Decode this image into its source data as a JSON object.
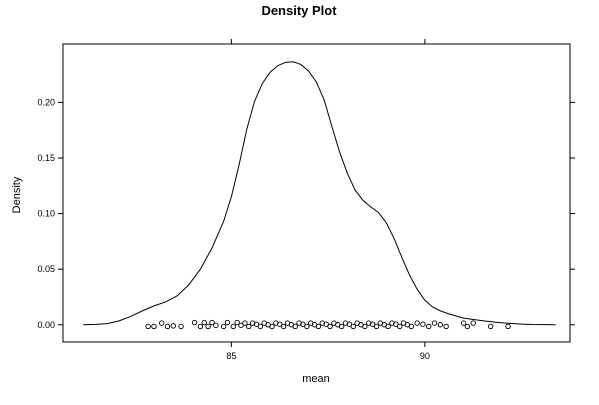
{
  "chart_data": {
    "type": "line",
    "title": "Density Plot",
    "xlabel": "mean",
    "ylabel": "Density",
    "xlim": [
      80.65,
      93.75
    ],
    "ylim": [
      -0.0155,
      0.2525
    ],
    "xticks": [
      85,
      90
    ],
    "yticks": [
      0.0,
      0.05,
      0.1,
      0.15,
      0.2
    ],
    "xtick_labels": [
      "85",
      "90"
    ],
    "ytick_labels": [
      "0.00",
      "0.05",
      "0.10",
      "0.15",
      "0.20"
    ],
    "grid": false,
    "legend": "none",
    "series": [
      {
        "x": [
          81.17,
          81.5,
          81.8,
          82.1,
          82.4,
          82.7,
          83.0,
          83.3,
          83.6,
          83.9,
          84.2,
          84.5,
          84.8,
          85.0,
          85.2,
          85.4,
          85.6,
          85.8,
          86.0,
          86.2,
          86.4,
          86.6,
          86.8,
          87.0,
          87.2,
          87.4,
          87.6,
          87.8,
          88.0,
          88.2,
          88.4,
          88.6,
          88.8,
          89.0,
          89.2,
          89.4,
          89.6,
          89.8,
          90.0,
          90.2,
          90.4,
          90.6,
          90.8,
          91.0,
          91.3,
          91.6,
          91.9,
          92.2,
          92.5,
          92.8,
          93.1,
          93.38
        ],
        "y": [
          0.0,
          0.0003,
          0.001,
          0.0035,
          0.0075,
          0.0125,
          0.017,
          0.0205,
          0.026,
          0.036,
          0.05,
          0.069,
          0.093,
          0.115,
          0.144,
          0.176,
          0.201,
          0.217,
          0.227,
          0.233,
          0.236,
          0.2365,
          0.234,
          0.228,
          0.218,
          0.202,
          0.178,
          0.155,
          0.136,
          0.121,
          0.112,
          0.106,
          0.101,
          0.092,
          0.078,
          0.061,
          0.045,
          0.032,
          0.022,
          0.016,
          0.0125,
          0.01,
          0.008,
          0.006,
          0.0045,
          0.0032,
          0.002,
          0.0012,
          0.0006,
          0.0002,
          0.0001,
          0.0
        ]
      }
    ],
    "rug_points": {
      "y": -0.0015,
      "x": [
        82.85,
        83.0,
        83.2,
        83.35,
        83.5,
        83.7,
        84.05,
        84.2,
        84.3,
        84.4,
        84.5,
        84.6,
        84.8,
        84.9,
        85.05,
        85.15,
        85.25,
        85.35,
        85.45,
        85.55,
        85.65,
        85.75,
        85.85,
        85.95,
        86.05,
        86.15,
        86.25,
        86.35,
        86.45,
        86.55,
        86.65,
        86.75,
        86.85,
        86.95,
        87.05,
        87.15,
        87.25,
        87.35,
        87.45,
        87.55,
        87.65,
        87.75,
        87.85,
        87.95,
        88.05,
        88.15,
        88.25,
        88.35,
        88.45,
        88.55,
        88.65,
        88.75,
        88.85,
        88.95,
        89.05,
        89.15,
        89.25,
        89.35,
        89.45,
        89.55,
        89.65,
        89.8,
        89.95,
        90.1,
        90.25,
        90.4,
        90.55,
        91.0,
        91.1,
        91.25,
        91.7,
        92.15
      ],
      "y_values": [
        -0.0015,
        -0.0015,
        0.0015,
        -0.0015,
        -0.001,
        -0.0015,
        0.002,
        -0.0015,
        0.002,
        -0.0015,
        0.002,
        -0.0005,
        -0.0015,
        0.002,
        -0.0015,
        0.002,
        -0.0005,
        0.0015,
        -0.0015,
        0.0015,
        0.0005,
        -0.0015,
        0.0015,
        0.0,
        -0.0015,
        0.0015,
        0.0005,
        -0.0015,
        0.0015,
        0.0,
        -0.0015,
        0.0015,
        0.0005,
        -0.0015,
        0.0015,
        0.0,
        -0.0015,
        0.0015,
        0.0005,
        -0.0015,
        0.0015,
        0.0,
        -0.0015,
        0.0015,
        0.0005,
        -0.0015,
        0.0015,
        0.0,
        -0.0015,
        0.0015,
        0.0005,
        -0.0015,
        0.0015,
        0.0,
        -0.0015,
        0.0015,
        0.0005,
        -0.0015,
        0.0015,
        0.0,
        -0.0015,
        0.0015,
        0.0005,
        -0.0015,
        0.0015,
        0.0,
        -0.0015,
        0.0015,
        -0.0015,
        0.0015,
        -0.0015,
        -0.0015
      ]
    }
  }
}
